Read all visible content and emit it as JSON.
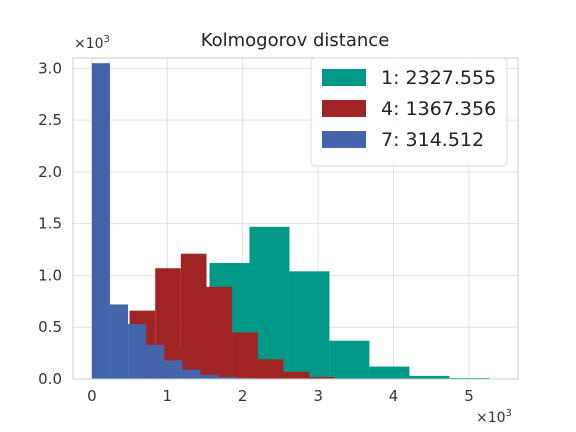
{
  "chart_data": {
    "type": "bar",
    "title": "Kolmogorov distance",
    "xlabel": "",
    "ylabel": "",
    "x_multiplier": "×10",
    "x_multiplier_exp": "3",
    "y_multiplier": "×10",
    "y_multiplier_exp": "3",
    "xlim": [
      -0.25,
      5.65
    ],
    "ylim": [
      0,
      3.1
    ],
    "xticks": [
      0,
      1,
      2,
      3,
      4,
      5
    ],
    "yticks": [
      0.0,
      0.5,
      1.0,
      1.5,
      2.0,
      2.5,
      3.0
    ],
    "ytick_labels": [
      "0.0",
      "0.5",
      "1.0",
      "1.5",
      "2.0",
      "2.5",
      "3.0"
    ],
    "grid": true,
    "legend_position": "top-right",
    "series": [
      {
        "name": "1: 2327.555",
        "color": "#009988",
        "bin_edges": [
          0.5,
          1.03,
          1.56,
          2.09,
          2.62,
          3.15,
          3.68,
          4.21,
          4.74,
          5.27
        ],
        "values": [
          0.04,
          0.3,
          1.12,
          1.47,
          1.04,
          0.37,
          0.12,
          0.03,
          0.01
        ]
      },
      {
        "name": "4: 1367.356",
        "color": "#a02424",
        "bin_edges": [
          0.5,
          0.84,
          1.18,
          1.52,
          1.86,
          2.2,
          2.54,
          2.88,
          3.22,
          3.56
        ],
        "values": [
          0.66,
          1.07,
          1.21,
          0.89,
          0.45,
          0.19,
          0.07,
          0.02,
          0.005
        ]
      },
      {
        "name": "7: 314.512",
        "color": "#4465aa",
        "bin_edges": [
          0.0,
          0.24,
          0.48,
          0.72,
          0.96,
          1.2,
          1.44,
          1.68,
          1.92,
          2.16
        ],
        "values": [
          3.05,
          0.72,
          0.53,
          0.33,
          0.18,
          0.09,
          0.04,
          0.02,
          0.01
        ]
      }
    ]
  }
}
